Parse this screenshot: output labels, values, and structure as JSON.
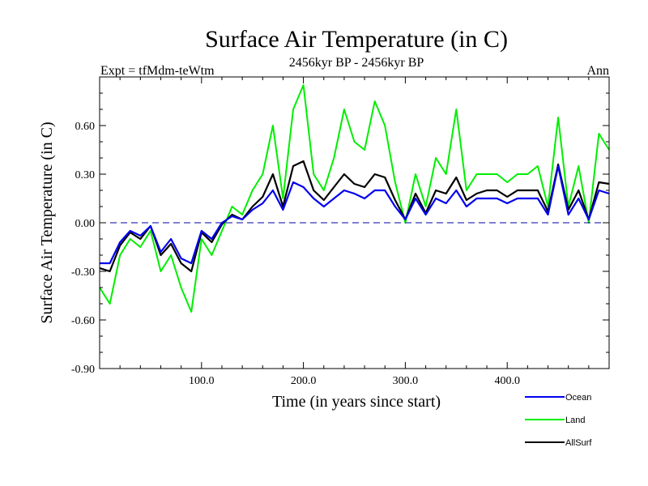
{
  "chart_data": {
    "type": "line",
    "title": "Surface Air Temperature (in C)",
    "subtitle_left": "Expt = tfMdm-teWtm",
    "subtitle_center": "2456kyr BP - 2456kyr BP",
    "subtitle_right": "Ann",
    "xlabel": "Time (in years since start)",
    "ylabel": "Surface Air Temperature (in C)",
    "xlim": [
      0,
      500
    ],
    "ylim": [
      -0.9,
      0.9
    ],
    "xticks": [
      100,
      200,
      300,
      400
    ],
    "xtick_labels": [
      "100.0",
      "200.0",
      "300.0",
      "400.0"
    ],
    "yticks": [
      -0.9,
      -0.6,
      -0.3,
      0.0,
      0.3,
      0.6
    ],
    "ytick_labels": [
      "-0.90",
      "-0.60",
      "-0.30",
      "0.00",
      "0.30",
      "0.60"
    ],
    "reference_line": 0.0,
    "legend_placement": "bottom-right",
    "x_step": 10,
    "series": [
      {
        "name": "Land",
        "color": "#00ee00",
        "values": [
          -0.4,
          -0.5,
          -0.2,
          -0.1,
          -0.15,
          -0.05,
          -0.3,
          -0.2,
          -0.4,
          -0.55,
          -0.1,
          -0.2,
          -0.05,
          0.1,
          0.05,
          0.2,
          0.3,
          0.6,
          0.15,
          0.7,
          0.85,
          0.3,
          0.2,
          0.4,
          0.7,
          0.5,
          0.45,
          0.75,
          0.6,
          0.25,
          0.0,
          0.3,
          0.1,
          0.4,
          0.3,
          0.7,
          0.2,
          0.3,
          0.3,
          0.3,
          0.25,
          0.3,
          0.3,
          0.35,
          0.1,
          0.65,
          0.1,
          0.35,
          0.0,
          0.55,
          0.45
        ]
      },
      {
        "name": "AllSurf",
        "color": "#000000",
        "values": [
          -0.28,
          -0.3,
          -0.14,
          -0.06,
          -0.1,
          -0.02,
          -0.2,
          -0.13,
          -0.25,
          -0.3,
          -0.06,
          -0.12,
          -0.01,
          0.05,
          0.02,
          0.1,
          0.16,
          0.3,
          0.1,
          0.35,
          0.38,
          0.2,
          0.14,
          0.22,
          0.3,
          0.24,
          0.22,
          0.3,
          0.28,
          0.14,
          0.02,
          0.18,
          0.06,
          0.2,
          0.18,
          0.28,
          0.14,
          0.18,
          0.2,
          0.2,
          0.16,
          0.2,
          0.2,
          0.2,
          0.07,
          0.36,
          0.08,
          0.2,
          0.02,
          0.25,
          0.24
        ]
      },
      {
        "name": "Ocean",
        "color": "#0000ee",
        "values": [
          -0.25,
          -0.25,
          -0.12,
          -0.05,
          -0.08,
          -0.02,
          -0.18,
          -0.1,
          -0.22,
          -0.25,
          -0.05,
          -0.1,
          0.0,
          0.04,
          0.02,
          0.08,
          0.12,
          0.2,
          0.08,
          0.25,
          0.22,
          0.15,
          0.1,
          0.15,
          0.2,
          0.18,
          0.15,
          0.2,
          0.2,
          0.1,
          0.02,
          0.15,
          0.05,
          0.15,
          0.12,
          0.2,
          0.1,
          0.15,
          0.15,
          0.15,
          0.12,
          0.15,
          0.15,
          0.15,
          0.05,
          0.35,
          0.05,
          0.15,
          0.02,
          0.2,
          0.18
        ]
      }
    ],
    "legend": [
      {
        "label": "Ocean",
        "color": "#0000ee"
      },
      {
        "label": "Land",
        "color": "#00ee00"
      },
      {
        "label": "AllSurf",
        "color": "#000000"
      }
    ]
  }
}
